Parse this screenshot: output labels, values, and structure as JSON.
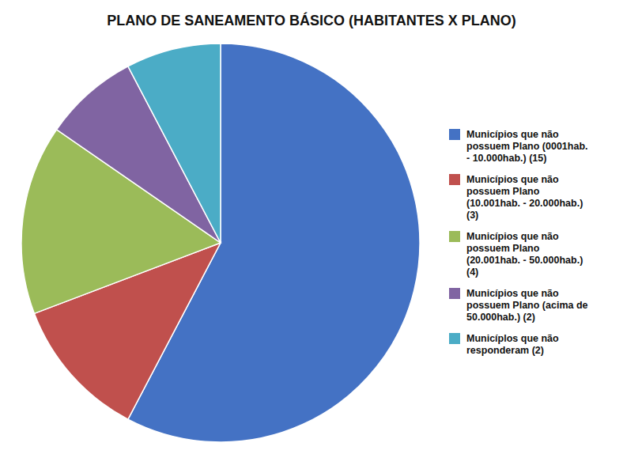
{
  "chart_data": {
    "type": "pie",
    "title": "PLANO DE SANEAMENTO BÁSICO (HABITANTES X PLANO)",
    "categories": [
      "Municípios que não\npossuem Plano (0001hab.\n- 10.000hab.) (15)",
      "Municípios que não\npossuem Plano\n(10.001hab. - 20.000hab.)\n(3)",
      "Municípios que não\npossuem Plano\n(20.001hab. - 50.000hab.)\n(4)",
      "Municípios que não\npossuem Plano (acima de\n50.000hab.) (2)",
      "Municíplos que não\nresponderam (2)"
    ],
    "values": [
      15,
      3,
      4,
      2,
      2
    ],
    "colors": [
      "#4472C4",
      "#C0504D",
      "#9BBB59",
      "#8064A2",
      "#4BACC6"
    ],
    "legend": "right"
  }
}
